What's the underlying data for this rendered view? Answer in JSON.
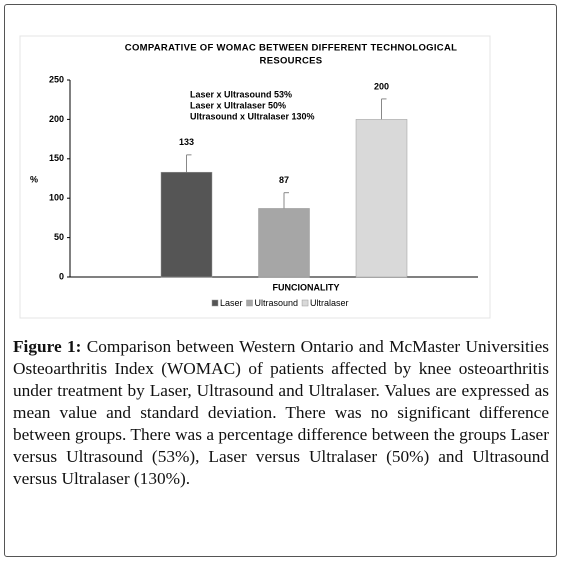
{
  "chart_data": {
    "type": "bar",
    "title": "COMPARATIVE OF WOMAC BETWEEN DIFFERENT TECHNOLOGICAL",
    "title_line2": "RESOURCES",
    "y_label": "%",
    "x_label": "FUNCIONALITY",
    "annotations": [
      "Laser x Ultrasound 53%",
      "Laser x Ultralaser 50%",
      "Ultrasound x Ultralaser 130%"
    ],
    "series": [
      {
        "name": "Laser",
        "color": "#555555",
        "values": [
          133
        ],
        "errors": [
          22
        ]
      },
      {
        "name": "Ultrasound",
        "color": "#a6a6a6",
        "values": [
          87
        ],
        "errors": [
          20
        ]
      },
      {
        "name": "Ultralaser",
        "color": "#d9d9d9",
        "values": [
          200
        ],
        "errors": [
          26
        ]
      }
    ],
    "ylim": [
      0,
      250
    ],
    "yticks": [
      0,
      50,
      100,
      150,
      200,
      250
    ],
    "grid": false
  },
  "caption": {
    "label": "Figure 1:",
    "text": "Comparison between Western Ontario and McMaster Universities Osteoarthritis Index (WOMAC) of patients affected by knee osteoarthritis under treatment by Laser, Ultrasound and Ultralaser. Values are expressed as mean value and standard deviation. There was no significant difference between groups. There was a percentage difference between the groups Laser versus Ultrasound (53%), Laser versus Ultralaser (50%) and Ultrasound versus Ultralaser (130%)."
  }
}
